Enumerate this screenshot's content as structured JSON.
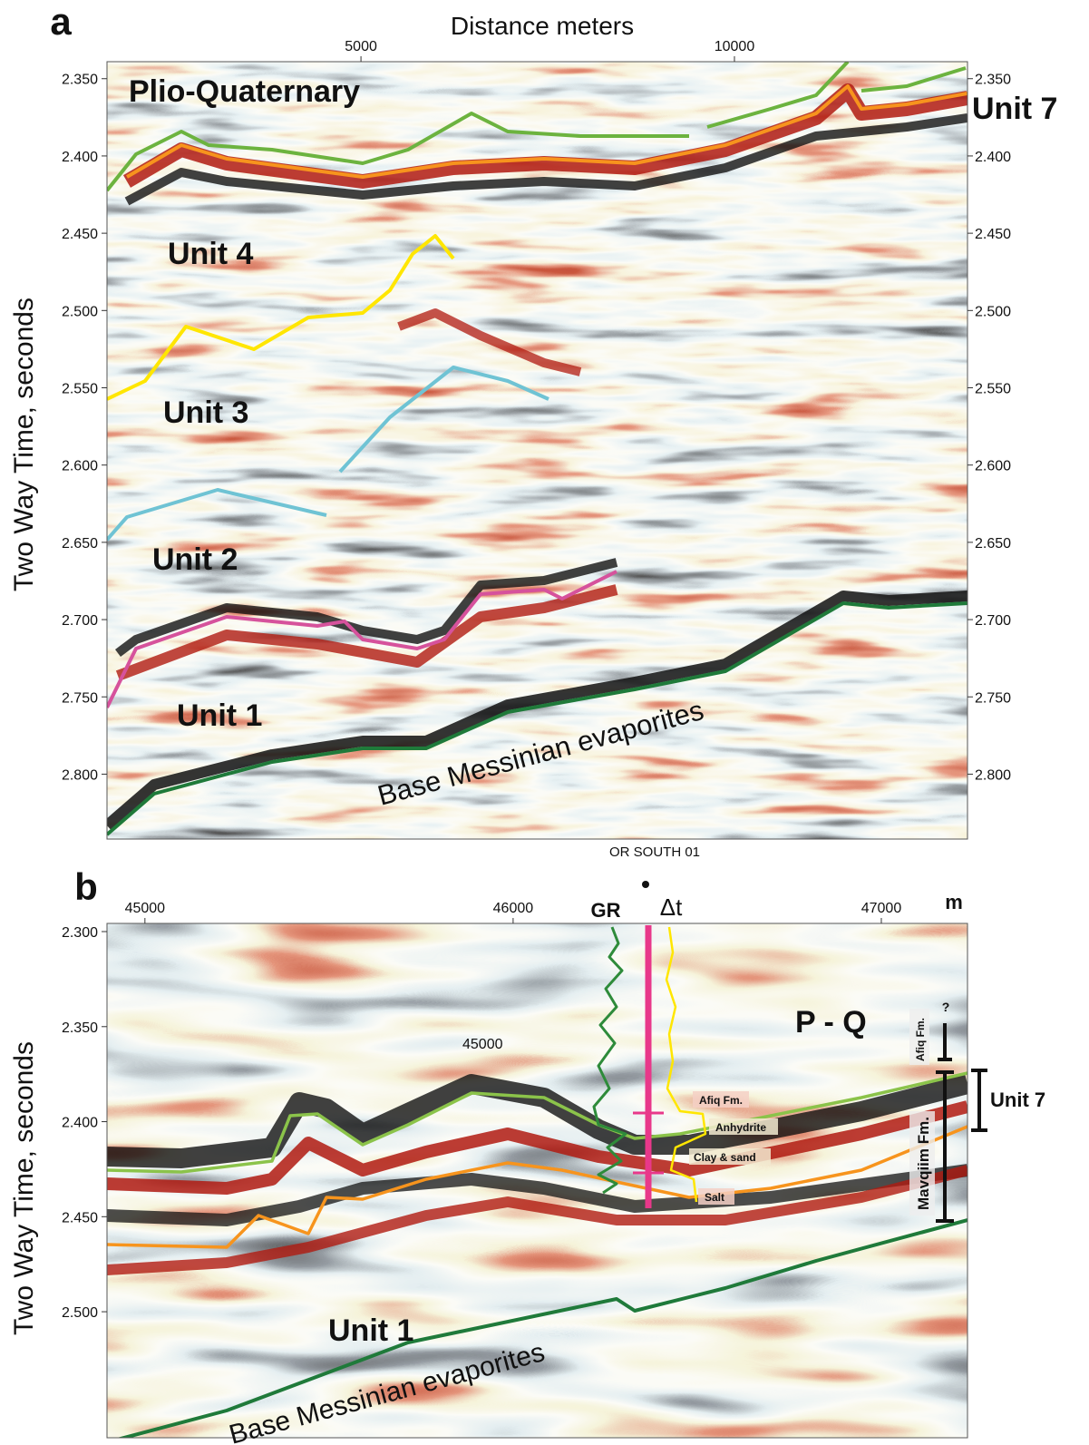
{
  "panels": [
    {
      "label": "a",
      "x_axis_title": "Distance meters",
      "xlim": [
        1600,
        13120
      ],
      "xticks": [
        5000,
        10000
      ],
      "y_axis_title": "Two Way Time,  seconds",
      "ylim": [
        2.339,
        2.842
      ],
      "yticks": [
        {
          "value": 2.35,
          "label": "2.350"
        },
        {
          "value": 2.4,
          "label": "2.400"
        },
        {
          "value": 2.45,
          "label": "2.450"
        },
        {
          "value": 2.5,
          "label": "2.500"
        },
        {
          "value": 2.55,
          "label": "2.550"
        },
        {
          "value": 2.6,
          "label": "2.600"
        },
        {
          "value": 2.65,
          "label": "2.650"
        },
        {
          "value": 2.7,
          "label": "2.700"
        },
        {
          "value": 2.75,
          "label": "2.750"
        },
        {
          "value": 2.8,
          "label": "2.800"
        }
      ],
      "annotations": [
        "Plio-Quaternary",
        "Unit 7",
        "Unit 4",
        "Unit 3",
        "Unit 2",
        "Unit 1",
        "Base Messinian evaporites"
      ]
    },
    {
      "label": "b",
      "well_name": "OR SOUTH 01",
      "x_unit": "m",
      "xlim": [
        44897,
        47234
      ],
      "xticks": [
        45000,
        46000,
        47000
      ],
      "y_axis_title": "Two Way Time,  seconds",
      "ylim": [
        2.2957,
        2.5663
      ],
      "yticks": [
        {
          "value": 2.3,
          "label": "2.300"
        },
        {
          "value": 2.35,
          "label": "2.350"
        },
        {
          "value": 2.4,
          "label": "2.400"
        },
        {
          "value": 2.45,
          "label": "2.450"
        },
        {
          "value": 2.5,
          "label": "2.500"
        }
      ],
      "annotations": [
        "GR",
        "Δt",
        "P - Q",
        "45000",
        "Afiq Fm.",
        "Anhydrite",
        "Clay & sand",
        "Salt",
        "?",
        "Afiq Fm.",
        "Mavqiim Fm.",
        "Unit 7",
        "Unit 1",
        "Base Messinian evaporites"
      ]
    }
  ]
}
